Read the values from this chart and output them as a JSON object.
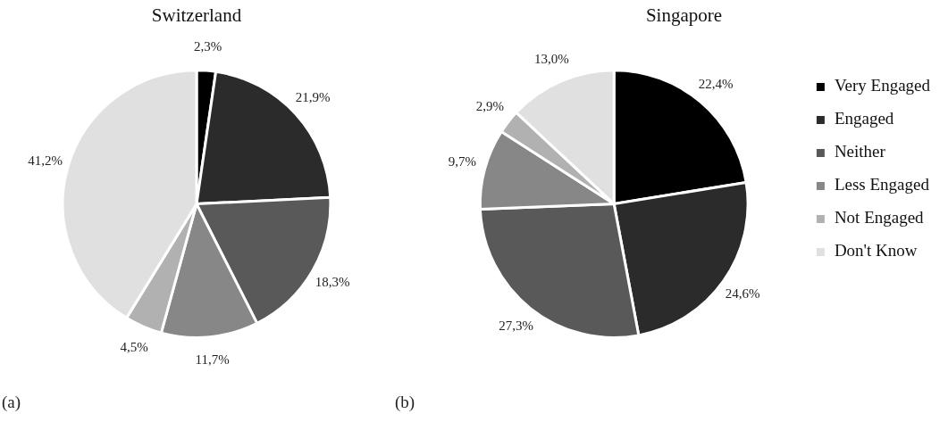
{
  "chart_data": [
    {
      "type": "pie",
      "title": "Switzerland",
      "categories": [
        null,
        null,
        null,
        null,
        null,
        null
      ],
      "values": [
        2.3,
        21.9,
        18.3,
        11.7,
        4.5,
        41.2
      ],
      "value_labels": [
        "2,3%",
        "21,9%",
        "18,3%",
        "11,7%",
        "4,5%",
        "41,2%"
      ],
      "colors": [
        "#000000",
        "#2b2b2b",
        "#595959",
        "#878787",
        "#b1b1b1",
        "#e0e0e0"
      ],
      "legend": false,
      "annotations": [
        "(a)"
      ]
    },
    {
      "type": "pie",
      "title": "Singapore",
      "categories": [
        "Very Engaged",
        "Engaged",
        "Neither",
        "Less Engaged",
        "Not Engaged",
        "Don't Know"
      ],
      "values": [
        22.4,
        24.6,
        27.3,
        9.7,
        2.9,
        13.0
      ],
      "value_labels": [
        "22,4%",
        "24,6%",
        "27,3%",
        "9,7%",
        "2,9%",
        "13,0%"
      ],
      "colors": [
        "#000000",
        "#2b2b2b",
        "#595959",
        "#878787",
        "#b1b1b1",
        "#e0e0e0"
      ],
      "legend": "right",
      "annotations": [
        "(b)"
      ]
    }
  ]
}
